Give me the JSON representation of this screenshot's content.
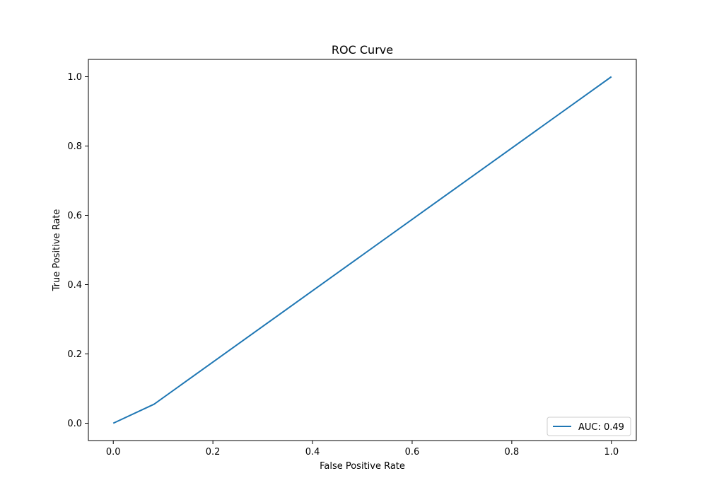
{
  "chart_data": {
    "type": "line",
    "title": "ROC Curve",
    "xlabel": "False Positive Rate",
    "ylabel": "True Positive Rate",
    "xlim": [
      -0.05,
      1.05
    ],
    "ylim": [
      -0.05,
      1.05
    ],
    "xticks": [
      0.0,
      0.2,
      0.4,
      0.6,
      0.8,
      1.0
    ],
    "yticks": [
      0.0,
      0.2,
      0.4,
      0.6,
      0.8,
      1.0
    ],
    "xtick_labels": [
      "0.0",
      "0.2",
      "0.4",
      "0.6",
      "0.8",
      "1.0"
    ],
    "ytick_labels": [
      "0.0",
      "0.2",
      "0.4",
      "0.6",
      "0.8",
      "1.0"
    ],
    "grid": false,
    "legend_position": "lower right",
    "series": [
      {
        "name": "AUC: 0.49",
        "color": "#1f77b4",
        "x": [
          0.0,
          0.082,
          1.0
        ],
        "y": [
          0.0,
          0.055,
          1.0
        ]
      }
    ]
  }
}
